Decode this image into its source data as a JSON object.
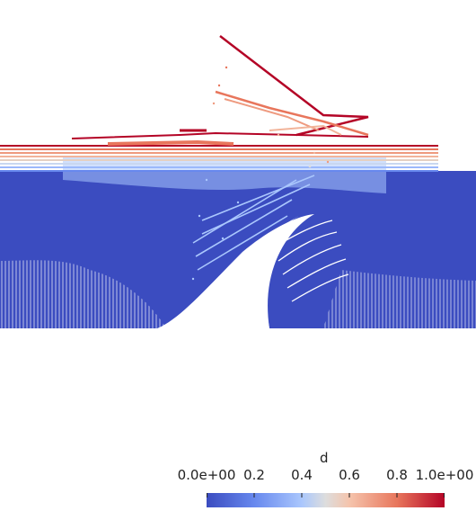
{
  "colorbar": {
    "title": "d",
    "ticks": [
      "0.0e+00",
      "0.2",
      "0.4",
      "0.6",
      "0.8",
      "1.0e+00"
    ],
    "range": [
      0,
      1
    ],
    "colors": {
      "low": "#3b4cc0",
      "mid": "#dddddd",
      "high": "#b40426"
    }
  }
}
